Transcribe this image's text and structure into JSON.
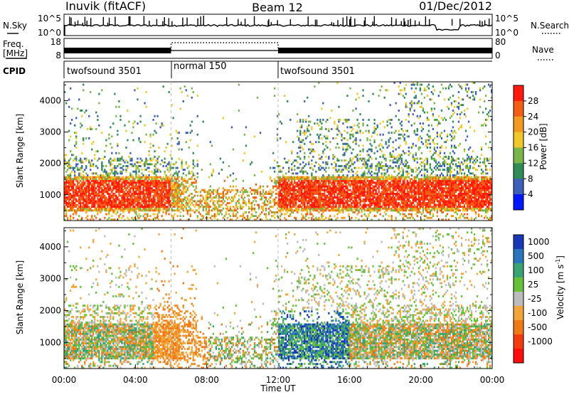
{
  "header": {
    "title": "Inuvik (fitACF)",
    "beam": "Beam 12",
    "date": "01/Dec/2012"
  },
  "nsky_panel": {
    "left_label": "N.Sky",
    "right_label": "N.Search",
    "left_ticks": [
      "10^5",
      "10^0"
    ],
    "right_ticks": [
      "10^5",
      "10^0"
    ]
  },
  "freq_panel": {
    "left_label_line1": "Freq.",
    "left_label_line2": "[MHz]",
    "right_label": "Nave",
    "left_ticks": [
      "18",
      "8"
    ],
    "right_ticks": [
      "80",
      "0"
    ]
  },
  "cpid_panel": {
    "label": "CPID",
    "segments": [
      {
        "name": "twofsound 3501",
        "start": "00:00",
        "end": "06:00"
      },
      {
        "name": "normal 150",
        "start": "06:00",
        "end": "12:00"
      },
      {
        "name": "twofsound 3501",
        "start": "12:00",
        "end": "24:00"
      }
    ]
  },
  "chart_data": [
    {
      "type": "heatmap",
      "title": "Power",
      "ylabel": "Slant Range [km]",
      "xlabel": "",
      "xlim": [
        "00:00",
        "24:00"
      ],
      "ylim": [
        180,
        4600
      ],
      "yticks": [
        1000,
        2000,
        3000,
        4000
      ],
      "colorbar": {
        "label": "Power [dB]",
        "ticks": [
          "4",
          "8",
          "12",
          "16",
          "20",
          "24",
          "28"
        ],
        "colors": [
          "#0018ff",
          "#3d5fb5",
          "#2f8c57",
          "#79b64a",
          "#f0c72b",
          "#f29a1e",
          "#f35e16",
          "#ff1a0d"
        ]
      }
    },
    {
      "type": "heatmap",
      "title": "Velocity",
      "ylabel": "Slant Range [km]",
      "xlabel": "Time UT",
      "xlim": [
        "00:00",
        "24:00"
      ],
      "ylim": [
        180,
        4600
      ],
      "yticks": [
        1000,
        2000,
        3000,
        4000
      ],
      "xticks": [
        "00:00",
        "04:00",
        "08:00",
        "12:00",
        "16:00",
        "20:00",
        "00:00"
      ],
      "colorbar": {
        "label": "Velocity [m s",
        "label_superscript": "-1",
        "label_close": "]",
        "ticks": [
          "1000",
          "500",
          "100",
          "25",
          "-25",
          "-100",
          "-500",
          "-1000"
        ],
        "colors": [
          "#1838b8",
          "#2b76b8",
          "#39a373",
          "#67c03a",
          "#bcbcbc",
          "#f2a63a",
          "#f07a17",
          "#f23c10",
          "#ff0d0d"
        ]
      }
    }
  ]
}
